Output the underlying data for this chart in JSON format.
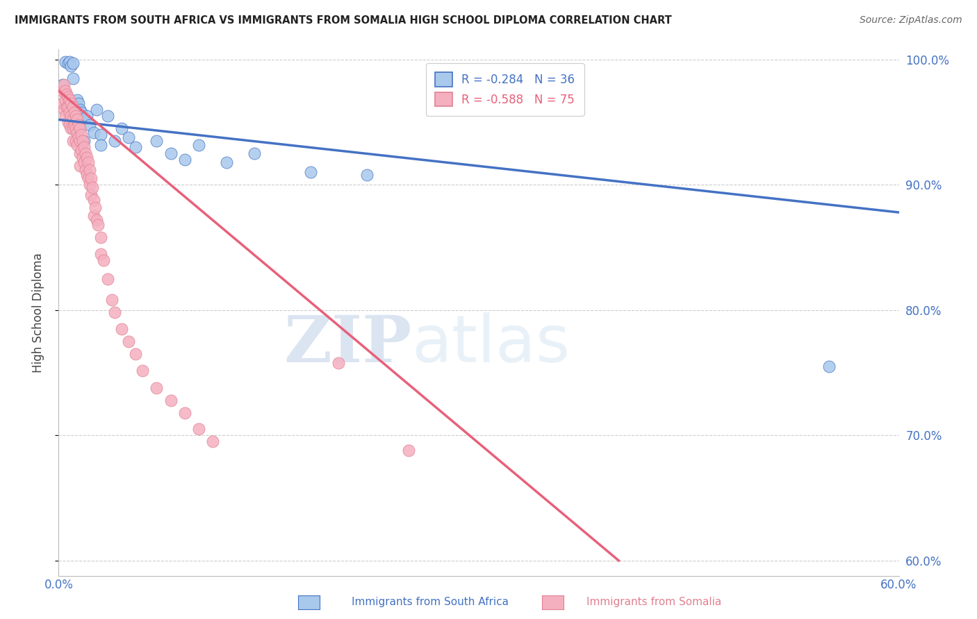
{
  "title": "IMMIGRANTS FROM SOUTH AFRICA VS IMMIGRANTS FROM SOMALIA HIGH SCHOOL DIPLOMA CORRELATION CHART",
  "source": "Source: ZipAtlas.com",
  "ylabel": "High School Diploma",
  "xmin": 0.0,
  "xmax": 0.6,
  "ymin": 0.588,
  "ymax": 1.008,
  "yticks": [
    0.6,
    0.7,
    0.8,
    0.9,
    1.0
  ],
  "ytick_labels": [
    "60.0%",
    "70.0%",
    "80.0%",
    "90.0%",
    "100.0%"
  ],
  "xticks": [
    0.0,
    0.1,
    0.2,
    0.3,
    0.4,
    0.5,
    0.6
  ],
  "xtick_labels": [
    "0.0%",
    "",
    "",
    "",
    "",
    "",
    "60.0%"
  ],
  "color_south_africa": "#a8c8ec",
  "color_somalia": "#f5b0c0",
  "color_line_south_africa": "#4472c4",
  "color_line_somalia": "#e8607a",
  "legend_R_south_africa": "R = -0.284",
  "legend_N_south_africa": "N = 36",
  "legend_R_somalia": "R = -0.588",
  "legend_N_somalia": "N = 75",
  "label_south_africa": "Immigrants from South Africa",
  "label_somalia": "Immigrants from Somalia",
  "watermark_zip": "ZIP",
  "watermark_atlas": "atlas",
  "background_color": "#ffffff",
  "grid_color": "#cccccc",
  "right_axis_color": "#4472c4",
  "sa_line_x0": 0.0,
  "sa_line_y0": 0.952,
  "sa_line_x1": 0.6,
  "sa_line_y1": 0.878,
  "so_line_x0": 0.0,
  "so_line_y0": 0.975,
  "so_line_x1": 0.4,
  "so_line_y1": 0.6,
  "south_africa_x": [
    0.003,
    0.005,
    0.007,
    0.008,
    0.009,
    0.01,
    0.01,
    0.012,
    0.013,
    0.013,
    0.014,
    0.015,
    0.015,
    0.016,
    0.017,
    0.018,
    0.02,
    0.022,
    0.025,
    0.027,
    0.03,
    0.03,
    0.035,
    0.04,
    0.045,
    0.05,
    0.055,
    0.07,
    0.08,
    0.09,
    0.1,
    0.12,
    0.14,
    0.18,
    0.22,
    0.55
  ],
  "south_africa_y": [
    0.98,
    0.998,
    0.997,
    0.998,
    0.995,
    0.997,
    0.985,
    0.96,
    0.968,
    0.955,
    0.965,
    0.96,
    0.945,
    0.958,
    0.952,
    0.935,
    0.955,
    0.948,
    0.942,
    0.96,
    0.94,
    0.932,
    0.955,
    0.935,
    0.945,
    0.938,
    0.93,
    0.935,
    0.925,
    0.92,
    0.932,
    0.918,
    0.925,
    0.91,
    0.908,
    0.755
  ],
  "somalia_x": [
    0.003,
    0.003,
    0.004,
    0.004,
    0.005,
    0.005,
    0.005,
    0.006,
    0.006,
    0.007,
    0.007,
    0.007,
    0.008,
    0.008,
    0.008,
    0.009,
    0.009,
    0.009,
    0.01,
    0.01,
    0.01,
    0.01,
    0.011,
    0.011,
    0.012,
    0.012,
    0.012,
    0.013,
    0.013,
    0.013,
    0.014,
    0.014,
    0.015,
    0.015,
    0.015,
    0.015,
    0.016,
    0.016,
    0.017,
    0.017,
    0.018,
    0.018,
    0.019,
    0.019,
    0.02,
    0.02,
    0.021,
    0.021,
    0.022,
    0.022,
    0.023,
    0.023,
    0.024,
    0.025,
    0.025,
    0.026,
    0.027,
    0.028,
    0.03,
    0.03,
    0.032,
    0.035,
    0.038,
    0.04,
    0.045,
    0.05,
    0.055,
    0.06,
    0.07,
    0.08,
    0.09,
    0.1,
    0.11,
    0.2,
    0.25
  ],
  "somalia_y": [
    0.975,
    0.965,
    0.98,
    0.96,
    0.975,
    0.968,
    0.955,
    0.972,
    0.962,
    0.97,
    0.962,
    0.95,
    0.968,
    0.958,
    0.948,
    0.965,
    0.955,
    0.945,
    0.962,
    0.952,
    0.945,
    0.935,
    0.958,
    0.948,
    0.955,
    0.945,
    0.935,
    0.952,
    0.942,
    0.932,
    0.948,
    0.938,
    0.945,
    0.935,
    0.925,
    0.915,
    0.94,
    0.928,
    0.935,
    0.922,
    0.93,
    0.918,
    0.925,
    0.912,
    0.922,
    0.908,
    0.918,
    0.905,
    0.912,
    0.9,
    0.905,
    0.892,
    0.898,
    0.888,
    0.875,
    0.882,
    0.872,
    0.868,
    0.858,
    0.845,
    0.84,
    0.825,
    0.808,
    0.798,
    0.785,
    0.775,
    0.765,
    0.752,
    0.738,
    0.728,
    0.718,
    0.705,
    0.695,
    0.758,
    0.688
  ]
}
